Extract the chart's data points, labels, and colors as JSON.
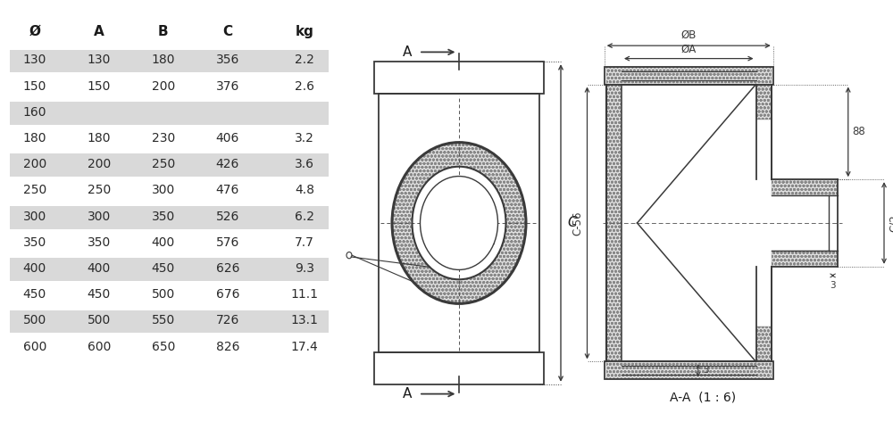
{
  "table_headers": [
    "Ø",
    "A",
    "B",
    "C",
    "kg"
  ],
  "table_rows": [
    [
      "130",
      "130",
      "180",
      "356",
      "2.2"
    ],
    [
      "150",
      "150",
      "200",
      "376",
      "2.6"
    ],
    [
      "160",
      "",
      "",
      "",
      ""
    ],
    [
      "180",
      "180",
      "230",
      "406",
      "3.2"
    ],
    [
      "200",
      "200",
      "250",
      "426",
      "3.6"
    ],
    [
      "250",
      "250",
      "300",
      "476",
      "4.8"
    ],
    [
      "300",
      "300",
      "350",
      "526",
      "6.2"
    ],
    [
      "350",
      "350",
      "400",
      "576",
      "7.7"
    ],
    [
      "400",
      "400",
      "450",
      "626",
      "9.3"
    ],
    [
      "450",
      "450",
      "500",
      "676",
      "11.1"
    ],
    [
      "500",
      "500",
      "550",
      "726",
      "13.1"
    ],
    [
      "600",
      "600",
      "650",
      "826",
      "17.4"
    ]
  ],
  "shaded_rows": [
    0,
    2,
    4,
    6,
    8,
    10
  ],
  "row_bg_color": "#d9d9d9",
  "bg_color": "#ffffff",
  "line_color": "#3a3a3a",
  "dim_color": "#3a3a3a",
  "label_aa": "A-A  (1 : 6)"
}
